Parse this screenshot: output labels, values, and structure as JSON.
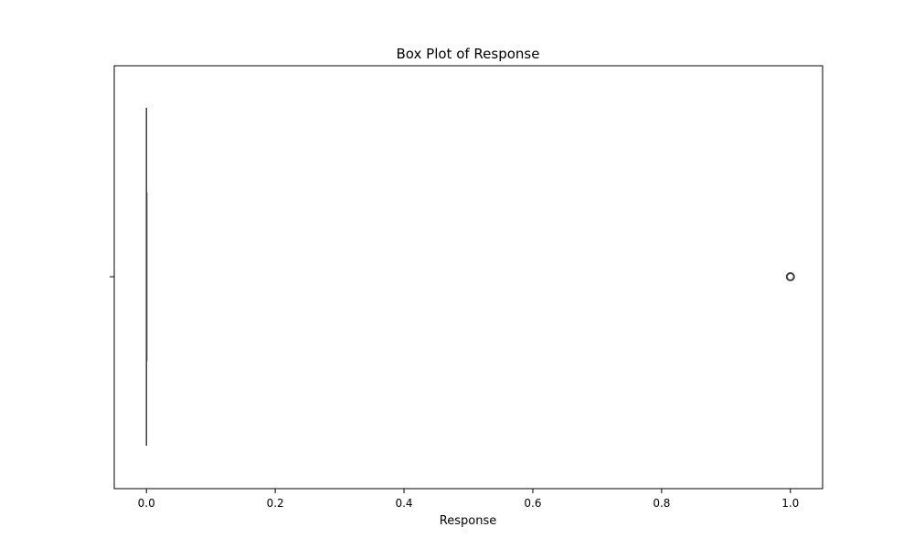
{
  "chart_data": {
    "type": "box",
    "title": "Box Plot of Response",
    "xlabel": "Response",
    "ylabel": "",
    "orientation": "horizontal",
    "xlim": [
      -0.05,
      1.05
    ],
    "xticks": [
      0.0,
      0.2,
      0.4,
      0.6,
      0.8,
      1.0
    ],
    "xtick_labels": [
      "0.0",
      "0.2",
      "0.4",
      "0.6",
      "0.8",
      "1.0"
    ],
    "grid": false,
    "series": [
      {
        "whisker_low": 0.0,
        "q1": 0.0,
        "median": 0.0,
        "q3": 0.0,
        "whisker_high": 0.0,
        "outliers": [
          1.0
        ]
      }
    ],
    "colors": {
      "box_line": "#3f3f3f",
      "outlier_edge": "#3f3f3f",
      "axis": "#000000"
    }
  }
}
